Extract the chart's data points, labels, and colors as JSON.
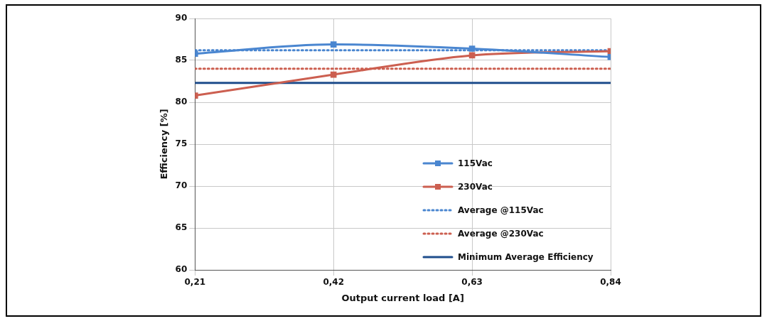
{
  "chart_data": {
    "type": "line",
    "xlabel": "Output current load [A]",
    "ylabel": "Efficiency [%]",
    "x": [
      0.21,
      0.42,
      0.63,
      0.84
    ],
    "series": [
      {
        "name": "115Vac",
        "color": "#4a86d0",
        "values": [
          85.8,
          86.9,
          86.4,
          85.4
        ]
      },
      {
        "name": "230Vac",
        "color": "#cc5f50",
        "values": [
          80.8,
          83.3,
          85.6,
          86.1
        ]
      }
    ],
    "ref_lines": [
      {
        "axis": "y",
        "value": 86.2,
        "label": "Average @115Vac",
        "color": "#4a86d0",
        "line_style": "dotted"
      },
      {
        "axis": "y",
        "value": 84.0,
        "label": "Average @230Vac",
        "color": "#cc5f50",
        "line_style": "dotted"
      },
      {
        "axis": "y",
        "value": 82.3,
        "label": "Minimum Average Efficiency",
        "color": "#1f4e8c",
        "line_style": "solid"
      }
    ],
    "xlim": [
      0.21,
      0.84
    ],
    "xticks": [
      {
        "value": 0.21,
        "label": "0,21"
      },
      {
        "value": 0.42,
        "label": "0,42"
      },
      {
        "value": 0.63,
        "label": "0,63"
      },
      {
        "value": 0.84,
        "label": "0,84"
      }
    ],
    "ylim": [
      60,
      90
    ],
    "yticks": [
      60,
      65,
      70,
      75,
      80,
      85,
      90
    ],
    "grid": true,
    "legend": "bottom right",
    "marker": "square",
    "line_style": "solid"
  }
}
